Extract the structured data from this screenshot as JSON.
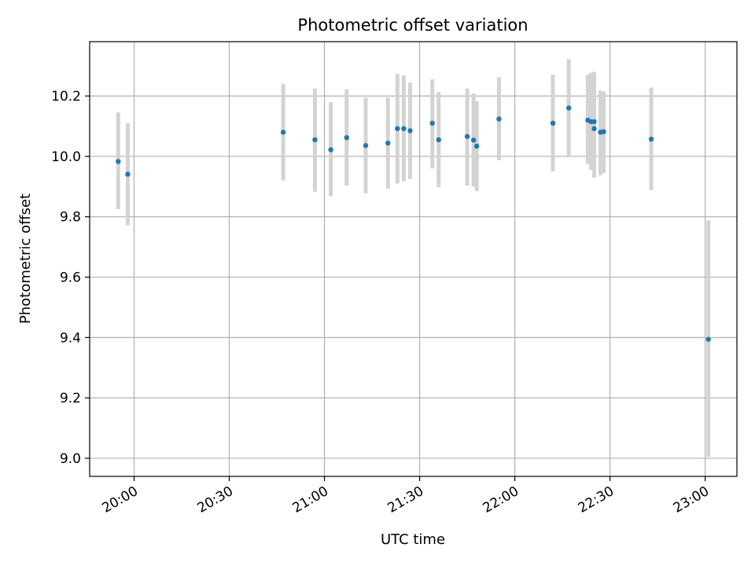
{
  "chart_data": {
    "type": "scatter",
    "title": "Photometric offset variation",
    "xlabel": "UTC time",
    "ylabel": "Photometric offset",
    "grid": true,
    "x_tick_labels": [
      "20:00",
      "20:30",
      "21:00",
      "21:30",
      "22:00",
      "22:30",
      "23:00"
    ],
    "y_tick_labels": [
      "9.0",
      "9.2",
      "9.4",
      "9.6",
      "9.8",
      "10.0",
      "10.2"
    ],
    "x_range": [
      "19:46",
      "23:10"
    ],
    "y_range": [
      8.94,
      10.38
    ],
    "colors": {
      "point": "#1f77b4",
      "errorbar": "#d3d3d3",
      "grid": "#b0b0b0"
    },
    "points": [
      {
        "x": "19:55",
        "y": 9.983,
        "lo": 9.825,
        "hi": 10.145
      },
      {
        "x": "19:58",
        "y": 9.941,
        "lo": 9.772,
        "hi": 10.11
      },
      {
        "x": "20:47",
        "y": 10.08,
        "lo": 9.92,
        "hi": 10.24
      },
      {
        "x": "20:57",
        "y": 10.055,
        "lo": 9.883,
        "hi": 10.225
      },
      {
        "x": "21:02",
        "y": 10.022,
        "lo": 9.868,
        "hi": 10.18
      },
      {
        "x": "21:07",
        "y": 10.062,
        "lo": 9.903,
        "hi": 10.222
      },
      {
        "x": "21:13",
        "y": 10.036,
        "lo": 9.878,
        "hi": 10.195
      },
      {
        "x": "21:20",
        "y": 10.044,
        "lo": 9.893,
        "hi": 10.195
      },
      {
        "x": "21:23",
        "y": 10.092,
        "lo": 9.91,
        "hi": 10.273
      },
      {
        "x": "21:25",
        "y": 10.092,
        "lo": 9.918,
        "hi": 10.268
      },
      {
        "x": "21:27",
        "y": 10.085,
        "lo": 9.925,
        "hi": 10.245
      },
      {
        "x": "21:34",
        "y": 10.11,
        "lo": 9.96,
        "hi": 10.255
      },
      {
        "x": "21:36",
        "y": 10.055,
        "lo": 9.898,
        "hi": 10.213
      },
      {
        "x": "21:45",
        "y": 10.066,
        "lo": 9.903,
        "hi": 10.225
      },
      {
        "x": "21:47",
        "y": 10.054,
        "lo": 9.9,
        "hi": 10.208
      },
      {
        "x": "21:48",
        "y": 10.034,
        "lo": 9.885,
        "hi": 10.183
      },
      {
        "x": "21:55",
        "y": 10.124,
        "lo": 9.987,
        "hi": 10.262
      },
      {
        "x": "22:12",
        "y": 10.11,
        "lo": 9.95,
        "hi": 10.27
      },
      {
        "x": "22:17",
        "y": 10.16,
        "lo": 10.0,
        "hi": 10.322
      },
      {
        "x": "22:23",
        "y": 10.12,
        "lo": 9.975,
        "hi": 10.27
      },
      {
        "x": "22:24",
        "y": 10.115,
        "lo": 9.955,
        "hi": 10.277
      },
      {
        "x": "22:25",
        "y": 10.092,
        "lo": 9.93,
        "hi": 10.28
      },
      {
        "x": "22:25",
        "y": 10.115,
        "lo": 9.95,
        "hi": 10.278
      },
      {
        "x": "22:27",
        "y": 10.08,
        "lo": 9.938,
        "hi": 10.218
      },
      {
        "x": "22:28",
        "y": 10.082,
        "lo": 9.945,
        "hi": 10.215
      },
      {
        "x": "22:43",
        "y": 10.057,
        "lo": 9.888,
        "hi": 10.228
      },
      {
        "x": "23:01",
        "y": 9.394,
        "lo": 9.005,
        "hi": 9.788
      }
    ]
  }
}
